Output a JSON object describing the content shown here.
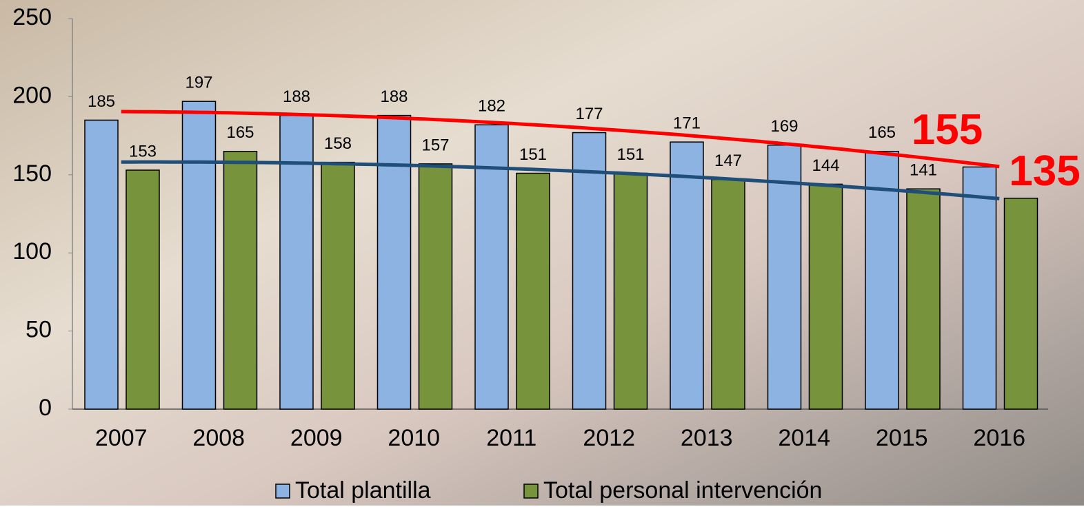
{
  "chart_data": {
    "type": "bar",
    "categories": [
      "2007",
      "2008",
      "2009",
      "2010",
      "2011",
      "2012",
      "2013",
      "2014",
      "2015",
      "2016"
    ],
    "series": [
      {
        "name": "Total plantilla",
        "color": "#8db3e2",
        "trend_color": "#ff0000",
        "values": [
          185,
          197,
          188,
          188,
          182,
          177,
          171,
          169,
          165,
          155
        ]
      },
      {
        "name": "Total personal intervención",
        "color": "#77933c",
        "trend_color": "#1f4e79",
        "values": [
          153,
          165,
          158,
          157,
          151,
          151,
          147,
          144,
          141,
          135
        ]
      }
    ],
    "ylim": [
      0,
      250
    ],
    "yticks": [
      0,
      50,
      100,
      150,
      200,
      250
    ],
    "trendline": true,
    "highlight_last_label_color": "#ff0000",
    "legend": "bottom"
  }
}
